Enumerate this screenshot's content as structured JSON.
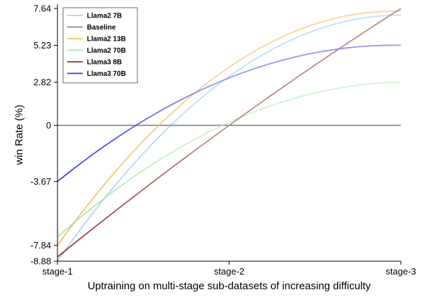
{
  "chart_data": {
    "type": "line",
    "xlabel": "Uptraining on multi-stage sub-datasets of increasing difficulty",
    "ylabel": "win Rate (%)",
    "x_categories": [
      "stage-1",
      "stage-2",
      "stage-3"
    ],
    "y_ticks": [
      "7.64",
      "5.23",
      "2.82",
      "0",
      "-3.67",
      "-7.84",
      "-8.88"
    ],
    "y_tick_values": [
      7.64,
      5.23,
      2.82,
      0,
      -3.67,
      -7.84,
      -8.88
    ],
    "ylim": [
      -8.88,
      7.64
    ],
    "legend_position": "top-left",
    "series": [
      {
        "name": "Llama2 7B",
        "color": "#a6d8f0",
        "opacity": 0.75,
        "values": [
          -8.88,
          3.2,
          7.2
        ]
      },
      {
        "name": "Baseline",
        "color": "#888888",
        "opacity": 1.0,
        "values": [
          0,
          0,
          0
        ]
      },
      {
        "name": "Llama2 13B",
        "color": "#f7c577",
        "opacity": 0.75,
        "values": [
          -7.84,
          3.8,
          7.45
        ]
      },
      {
        "name": "Llama2 70B",
        "color": "#bfeec0",
        "opacity": 0.75,
        "values": [
          -7.3,
          0.2,
          2.82
        ]
      },
      {
        "name": "Llama3 8B",
        "color": "#b87a7e",
        "opacity": 0.9,
        "values": [
          -8.6,
          0.0,
          7.64
        ]
      },
      {
        "name": "Llama3 70B",
        "color": "#8888ee",
        "opacity": 0.85,
        "values": [
          -3.67,
          3.1,
          5.23
        ]
      }
    ],
    "start_colors": [
      "#8ec9e6",
      "#888888",
      "#f0a830",
      "#88e088",
      "#8b1a1a",
      "#1515dd"
    ]
  }
}
